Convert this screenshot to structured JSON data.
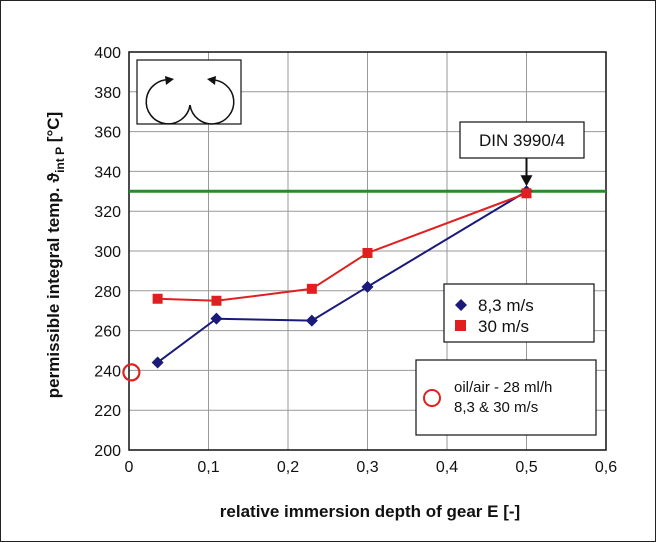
{
  "chart_data": {
    "type": "line",
    "xlabel": "relative immersion depth of gear E [-]",
    "ylabel_main": "permissible integral temp. ϑ",
    "ylabel_sub": "int P",
    "ylabel_unit": " [°C]",
    "xlim": [
      0,
      0.6
    ],
    "ylim": [
      200,
      400
    ],
    "x_ticks": [
      0,
      0.1,
      0.2,
      0.3,
      0.4,
      0.5,
      0.6
    ],
    "x_tick_labels": [
      "0",
      "0,1",
      "0,2",
      "0,3",
      "0,4",
      "0,5",
      "0,6"
    ],
    "y_ticks": [
      200,
      220,
      240,
      260,
      280,
      300,
      320,
      340,
      360,
      380,
      400
    ],
    "y_tick_labels": [
      "200",
      "220",
      "240",
      "260",
      "280",
      "300",
      "320",
      "340",
      "360",
      "380",
      "400"
    ],
    "grid": true,
    "series": [
      {
        "name": "8,3 m/s",
        "color": "#1a1a7a",
        "marker": "diamond",
        "x": [
          0.036,
          0.11,
          0.23,
          0.3,
          0.5
        ],
        "y": [
          244,
          266,
          265,
          282,
          330
        ]
      },
      {
        "name": "30 m/s",
        "color": "#e02020",
        "marker": "square",
        "x": [
          0.036,
          0.11,
          0.23,
          0.3,
          0.5
        ],
        "y": [
          276,
          275,
          281,
          299,
          329
        ]
      }
    ],
    "reference_line": {
      "y": 330,
      "color": "#2a8a2a"
    },
    "reference_label": "DIN 3990/4",
    "reference_point": {
      "x": 0.5,
      "y": 330
    },
    "oil_air_point": {
      "x": 0.003,
      "y": 239,
      "color": "#e02020"
    },
    "oil_air_label_1": "oil/air - 28 ml/h",
    "oil_air_label_2": "8,3 & 30 m/s",
    "legend_position": "right"
  }
}
